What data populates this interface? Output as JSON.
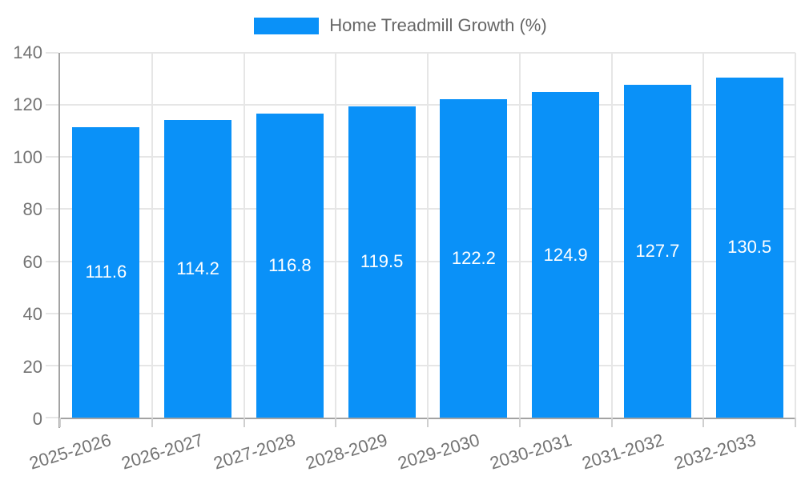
{
  "legend": {
    "label": "Home Treadmill Growth (%)"
  },
  "colors": {
    "bar": "#0a91f8",
    "gridline": "#e6e6e6",
    "axis_line": "#a3a3a3",
    "axis_text": "#737373",
    "legend_text": "#666666",
    "value_label_text": "#ffffff",
    "background": "#ffffff"
  },
  "chart_data": {
    "type": "bar",
    "title": "Home Treadmill Growth (%)",
    "categories": [
      "2025-2026",
      "2026-2027",
      "2027-2028",
      "2028-2029",
      "2029-2030",
      "2030-2031",
      "2031-2032",
      "2032-2033"
    ],
    "values": [
      111.6,
      114.2,
      116.8,
      119.5,
      122.2,
      124.9,
      127.7,
      130.5
    ],
    "value_labels": [
      "111.6",
      "114.2",
      "116.8",
      "119.5",
      "122.2",
      "124.9",
      "127.7",
      "130.5"
    ],
    "xlabel": "",
    "ylabel": "",
    "ylim": [
      0,
      140
    ],
    "yticks": [
      0,
      20,
      40,
      60,
      80,
      100,
      120,
      140
    ],
    "grid": true,
    "legend_position": "top",
    "x_tick_rotation_deg": -17,
    "value_label_position": "center"
  }
}
